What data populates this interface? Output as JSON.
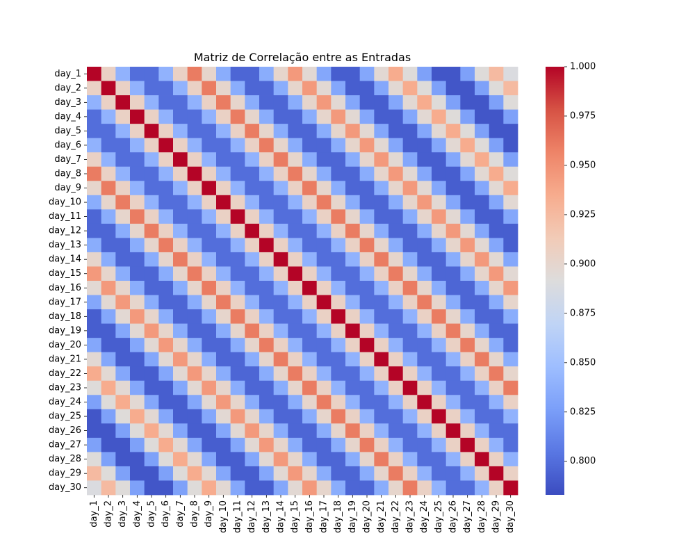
{
  "chart_data": {
    "type": "heatmap",
    "title": "Matriz de Correlação entre as Entradas",
    "xlabel": "",
    "ylabel": "",
    "labels": [
      "day_1",
      "day_2",
      "day_3",
      "day_4",
      "day_5",
      "day_6",
      "day_7",
      "day_8",
      "day_9",
      "day_10",
      "day_11",
      "day_12",
      "day_13",
      "day_14",
      "day_15",
      "day_16",
      "day_17",
      "day_18",
      "day_19",
      "day_20",
      "day_21",
      "day_22",
      "day_23",
      "day_24",
      "day_25",
      "day_26",
      "day_27",
      "day_28",
      "day_29",
      "day_30"
    ],
    "pattern_value_by_offset_mod7": [
      1.0,
      0.905,
      0.84,
      0.8,
      0.8,
      0.84,
      0.905
    ],
    "diagonal_value": 1.0,
    "offset_7_value": 0.96,
    "offset_14_value": 0.945,
    "offset_21_value": 0.935,
    "offset_28_value": 0.925,
    "colormap": "coolwarm",
    "colorbar": {
      "vmin": 0.783,
      "vmax": 1.0,
      "ticks": [
        0.8,
        0.825,
        0.85,
        0.875,
        0.9,
        0.925,
        0.95,
        0.975,
        1.0
      ],
      "tick_labels": [
        "0.800",
        "0.825",
        "0.850",
        "0.875",
        "0.900",
        "0.925",
        "0.950",
        "0.975",
        "1.000"
      ]
    },
    "legend": "colorbar-right",
    "grid": false
  }
}
